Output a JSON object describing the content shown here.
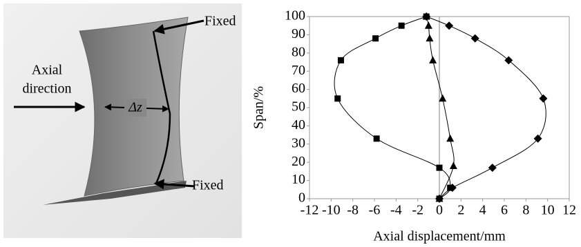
{
  "figure_labels": {
    "top": "Fixed",
    "bottom": "Fixed",
    "axial_line1": "Axial",
    "axial_line2": "direction",
    "delta": "Δz"
  },
  "chart_data": {
    "type": "line",
    "xlabel": "Axial displacement/mm",
    "ylabel": "Span/%",
    "xlim": [
      -12,
      12
    ],
    "ylim": [
      0,
      100
    ],
    "xticks": [
      -12,
      -10,
      -8,
      -6,
      -4,
      -2,
      0,
      2,
      4,
      6,
      8,
      10,
      12
    ],
    "yticks": [
      0,
      10,
      20,
      30,
      40,
      50,
      60,
      70,
      80,
      90,
      100
    ],
    "zero_line": true,
    "smooth": true,
    "series": [
      {
        "color": "#000000",
        "marker": "square",
        "x": [
          0,
          1,
          0,
          -5.8,
          -9.4,
          -9.1,
          -5.9,
          -3.5,
          -1.2
        ],
        "values": [
          0,
          6,
          17,
          33,
          55,
          76,
          88,
          95,
          100
        ]
      },
      {
        "color": "#000000",
        "marker": "diamond",
        "x": [
          0,
          1.2,
          4.9,
          9.1,
          9.6,
          6.4,
          3.3,
          0.9,
          -1.2
        ],
        "values": [
          0,
          6,
          17,
          33,
          55,
          76,
          88,
          95,
          100
        ]
      },
      {
        "color": "#000000",
        "marker": "triangle",
        "x": [
          0,
          1.3,
          1.0,
          0.3,
          -0.6,
          -0.9,
          -1.0,
          -1.2
        ],
        "values": [
          0,
          18,
          33,
          55,
          76,
          88,
          95,
          100
        ]
      }
    ]
  }
}
